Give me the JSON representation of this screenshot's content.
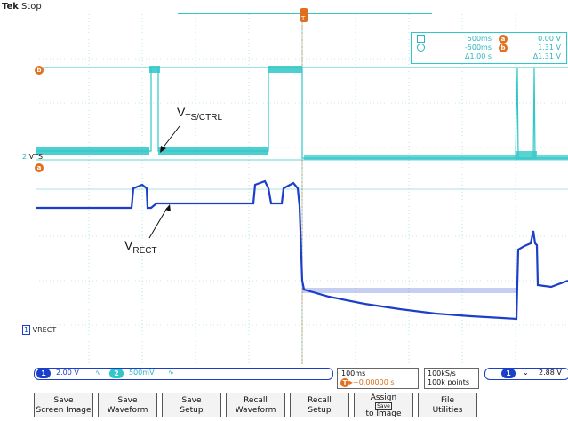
{
  "header": {
    "brand": "Tek",
    "state": "Stop",
    "trigger_marker": "T"
  },
  "cursors": {
    "row1": {
      "a": "500ms",
      "badge_a": "a",
      "a_value": "0.00 V"
    },
    "row2": {
      "b": "-500ms",
      "badge_b": "b",
      "b_value": "1.31 V"
    },
    "row3": {
      "delta_t": "Δ1.00 s",
      "delta_v": "Δ1.31 V"
    }
  },
  "annotations": {
    "vts_main": "V",
    "vts_sub": "TS/CTRL",
    "vrect_main": "V",
    "vrect_sub": "RECT"
  },
  "markers": {
    "ch2_label": "2",
    "ch2_name": "VTS",
    "ch1_label": "1",
    "ch1_name": "VRECT",
    "cursor_b_badge": "b",
    "cursor_a_badge": "a"
  },
  "status": {
    "ch1_num": "1",
    "ch1_scale": "2.00 V",
    "ch1_bw": "∿",
    "ch2_num": "2",
    "ch2_scale": "500mV",
    "ch2_bw": "∿",
    "timebase": "100ms",
    "trigger_pos_badge": "T",
    "trigger_pos": "▸+0.00000 s",
    "sample_rate": "100kS/s",
    "record_length": "100k points",
    "trig_ch": "1",
    "trig_slope": "⌄",
    "trig_level": "2.88 V"
  },
  "buttons": [
    {
      "line1": "Save",
      "line2": "Screen Image"
    },
    {
      "line1": "Save",
      "line2": "Waveform"
    },
    {
      "line1": "Save",
      "line2": "Setup"
    },
    {
      "line1": "Recall",
      "line2": "Waveform"
    },
    {
      "line1": "Recall",
      "line2": "Setup"
    },
    {
      "line1": "Assign",
      "line2": "Save",
      "line3": "to Image"
    },
    {
      "line1": "File",
      "line2": "Utilities"
    }
  ],
  "colors": {
    "ch1": "#1b3fc8",
    "ch2": "#2fc7c7",
    "cursor": "#2bb5c0",
    "trigger": "#e0701e"
  }
}
